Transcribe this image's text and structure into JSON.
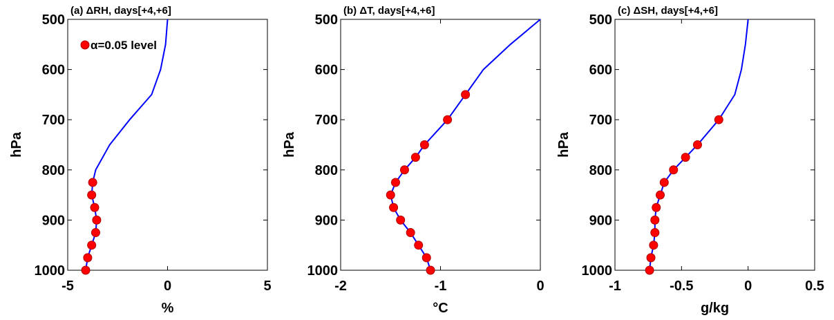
{
  "figure": {
    "line_color": "#0000ff",
    "marker_color": "#ff0000",
    "legend": {
      "label": "α=0.05 level",
      "marker": "red-dot",
      "placement": "top-left",
      "panel_index": 0
    }
  },
  "chart_data": [
    {
      "type": "line",
      "title": "(a) ΔRH, days[+4,+6]",
      "xlabel": "%",
      "ylabel": "hPa",
      "xlim": [
        -5,
        5
      ],
      "ylim": [
        500,
        1000
      ],
      "y_reversed": true,
      "xticks": [
        "-5",
        "0",
        "5"
      ],
      "yticks": [
        "500",
        "600",
        "700",
        "800",
        "900",
        "1000"
      ],
      "grid": false,
      "series": [
        {
          "y": [
            500,
            550,
            600,
            650,
            700,
            750,
            800,
            825,
            850,
            875,
            900,
            925,
            950,
            975,
            1000
          ],
          "x": [
            0.0,
            -0.1,
            -0.35,
            -0.8,
            -1.9,
            -2.9,
            -3.6,
            -3.75,
            -3.8,
            -3.65,
            -3.55,
            -3.6,
            -3.8,
            -4.0,
            -4.1
          ]
        }
      ],
      "significant_points": {
        "y": [
          825,
          850,
          875,
          900,
          925,
          950,
          975,
          1000
        ],
        "x": [
          -3.75,
          -3.8,
          -3.65,
          -3.55,
          -3.6,
          -3.8,
          -4.0,
          -4.1
        ]
      }
    },
    {
      "type": "line",
      "title": "(b) ΔT, days[+4,+6]",
      "xlabel": "°C",
      "ylabel": "hPa",
      "xlim": [
        -2,
        0
      ],
      "ylim": [
        500,
        1000
      ],
      "y_reversed": true,
      "xticks": [
        "-2",
        "-1",
        "0"
      ],
      "yticks": [
        "500",
        "600",
        "700",
        "800",
        "900",
        "1000"
      ],
      "grid": false,
      "series": [
        {
          "y": [
            500,
            550,
            600,
            650,
            700,
            750,
            775,
            800,
            825,
            850,
            875,
            900,
            925,
            950,
            975,
            1000
          ],
          "x": [
            0.0,
            -0.3,
            -0.57,
            -0.75,
            -0.93,
            -1.16,
            -1.25,
            -1.36,
            -1.45,
            -1.5,
            -1.47,
            -1.4,
            -1.3,
            -1.22,
            -1.14,
            -1.1
          ]
        }
      ],
      "significant_points": {
        "y": [
          650,
          700,
          750,
          775,
          800,
          825,
          850,
          875,
          900,
          925,
          950,
          975,
          1000
        ],
        "x": [
          -0.75,
          -0.93,
          -1.16,
          -1.25,
          -1.36,
          -1.45,
          -1.5,
          -1.47,
          -1.4,
          -1.3,
          -1.22,
          -1.14,
          -1.1
        ]
      }
    },
    {
      "type": "line",
      "title": "(c) ΔSH, days[+4,+6]",
      "xlabel": "g/kg",
      "ylabel": "hPa",
      "xlim": [
        -1,
        0.5
      ],
      "ylim": [
        500,
        1000
      ],
      "y_reversed": true,
      "xticks": [
        "-1",
        "-0.5",
        "0",
        "0.5"
      ],
      "yticks": [
        "500",
        "600",
        "700",
        "800",
        "900",
        "1000"
      ],
      "grid": false,
      "series": [
        {
          "y": [
            500,
            550,
            600,
            650,
            700,
            750,
            775,
            800,
            825,
            850,
            875,
            900,
            925,
            950,
            975,
            1000
          ],
          "x": [
            0.0,
            -0.02,
            -0.05,
            -0.1,
            -0.22,
            -0.38,
            -0.47,
            -0.56,
            -0.63,
            -0.66,
            -0.69,
            -0.7,
            -0.7,
            -0.71,
            -0.73,
            -0.74
          ]
        }
      ],
      "significant_points": {
        "y": [
          700,
          750,
          775,
          800,
          825,
          850,
          875,
          900,
          925,
          950,
          975,
          1000
        ],
        "x": [
          -0.22,
          -0.38,
          -0.47,
          -0.56,
          -0.63,
          -0.66,
          -0.69,
          -0.7,
          -0.7,
          -0.71,
          -0.73,
          -0.74
        ]
      }
    }
  ]
}
